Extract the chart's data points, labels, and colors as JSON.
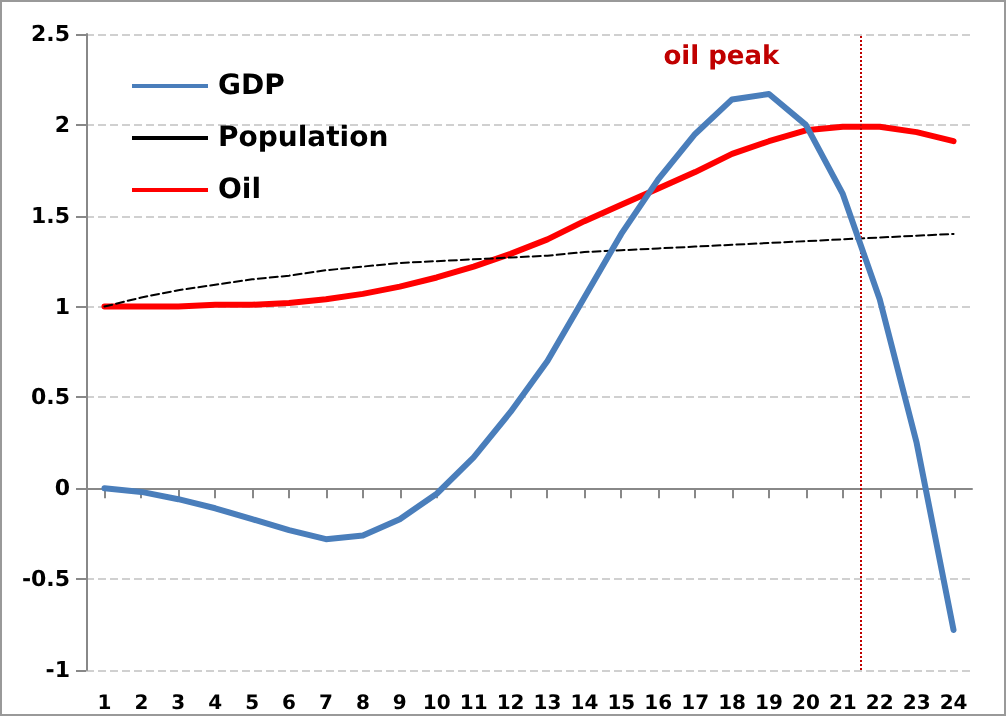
{
  "chart_data": {
    "type": "line",
    "x": [
      1,
      2,
      3,
      4,
      5,
      6,
      7,
      8,
      9,
      10,
      11,
      12,
      13,
      14,
      15,
      16,
      17,
      18,
      19,
      20,
      21,
      22,
      23,
      24
    ],
    "xlim": [
      0.5,
      24.5
    ],
    "xticks": [
      1,
      2,
      3,
      4,
      5,
      6,
      7,
      8,
      9,
      10,
      11,
      12,
      13,
      14,
      15,
      16,
      17,
      18,
      19,
      20,
      21,
      22,
      23,
      24
    ],
    "ylim": [
      -1,
      2.5
    ],
    "yticks": [
      -1,
      -0.5,
      0,
      0.5,
      1,
      1.5,
      2,
      2.5
    ],
    "grid": "y",
    "legend": "top left",
    "marker": "none",
    "series": [
      {
        "name": "GDP",
        "color": "#4a7ebb",
        "line_style": "solid",
        "values": [
          0,
          -0.02,
          -0.06,
          -0.11,
          -0.17,
          -0.23,
          -0.28,
          -0.26,
          -0.17,
          -0.03,
          0.17,
          0.42,
          0.7,
          1.05,
          1.4,
          1.7,
          1.95,
          2.14,
          2.17,
          2.0,
          1.62,
          1.04,
          0.25,
          -0.78
        ]
      },
      {
        "name": "Population",
        "color": "#000000",
        "line_style": "dashed",
        "values": [
          1,
          1.05,
          1.09,
          1.12,
          1.15,
          1.17,
          1.2,
          1.22,
          1.24,
          1.25,
          1.26,
          1.27,
          1.28,
          1.3,
          1.31,
          1.32,
          1.33,
          1.34,
          1.35,
          1.36,
          1.37,
          1.38,
          1.39,
          1.4
        ]
      },
      {
        "name": "Oil",
        "color": "#ff0000",
        "line_style": "solid",
        "values": [
          1,
          1,
          1,
          1.01,
          1.01,
          1.02,
          1.04,
          1.07,
          1.11,
          1.16,
          1.22,
          1.29,
          1.37,
          1.47,
          1.56,
          1.65,
          1.74,
          1.84,
          1.91,
          1.97,
          1.99,
          1.99,
          1.96,
          1.91
        ]
      }
    ],
    "ref_lines": [
      {
        "axis": "x",
        "value": 21.5,
        "label": "oil peak",
        "color": "#c00000",
        "line_style": "dotted"
      }
    ]
  }
}
